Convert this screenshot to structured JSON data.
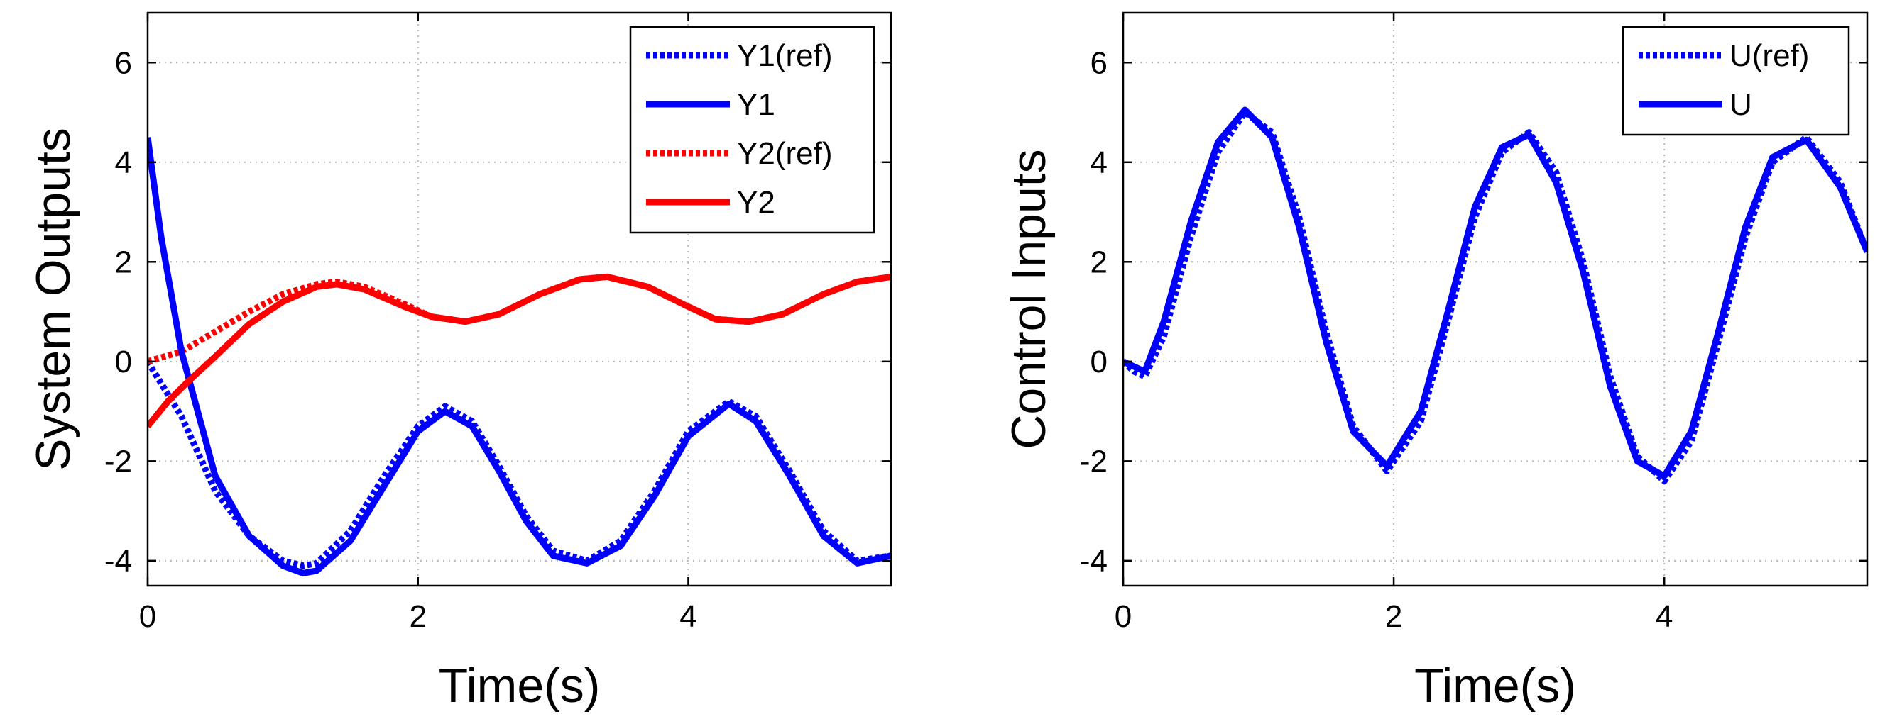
{
  "chart_data": [
    {
      "type": "line",
      "title": "",
      "xlabel": "Time(s)",
      "ylabel": "System Outputs",
      "xlim": [
        0,
        5.5
      ],
      "ylim": [
        -4.5,
        7
      ],
      "xticks": [
        0,
        2,
        4
      ],
      "yticks": [
        -4,
        -2,
        0,
        2,
        4,
        6
      ],
      "xtick_labels": [
        "0",
        "2",
        "4"
      ],
      "ytick_labels": [
        "-4",
        "-2",
        "0",
        "2",
        "4",
        "6"
      ],
      "grid": true,
      "legend_position": "top-right",
      "series": [
        {
          "name": "Y1(ref)",
          "color": "#0000ff",
          "style": "dotted",
          "x": [
            0,
            0.25,
            0.5,
            0.75,
            1.0,
            1.15,
            1.25,
            1.5,
            1.75,
            2.0,
            2.2,
            2.4,
            2.6,
            2.8,
            3.0,
            3.25,
            3.5,
            3.75,
            4.0,
            4.3,
            4.5,
            4.75,
            5.0,
            5.25,
            5.5
          ],
          "y": [
            0,
            -1.1,
            -2.6,
            -3.5,
            -4.0,
            -4.1,
            -4.05,
            -3.4,
            -2.3,
            -1.3,
            -0.9,
            -1.2,
            -2.1,
            -3.1,
            -3.8,
            -4.0,
            -3.6,
            -2.6,
            -1.4,
            -0.8,
            -1.1,
            -2.2,
            -3.4,
            -4.0,
            -3.9
          ]
        },
        {
          "name": "Y1",
          "color": "#0000ff",
          "style": "solid",
          "x": [
            0,
            0.1,
            0.25,
            0.5,
            0.75,
            1.0,
            1.15,
            1.25,
            1.5,
            1.75,
            2.0,
            2.2,
            2.4,
            2.6,
            2.8,
            3.0,
            3.25,
            3.5,
            3.75,
            4.0,
            4.3,
            4.5,
            4.75,
            5.0,
            5.25,
            5.5
          ],
          "y": [
            4.5,
            2.5,
            0.2,
            -2.3,
            -3.5,
            -4.1,
            -4.25,
            -4.2,
            -3.6,
            -2.5,
            -1.4,
            -1.0,
            -1.3,
            -2.2,
            -3.2,
            -3.9,
            -4.05,
            -3.7,
            -2.7,
            -1.5,
            -0.85,
            -1.2,
            -2.3,
            -3.5,
            -4.05,
            -3.9
          ]
        },
        {
          "name": "Y2(ref)",
          "color": "#ff0000",
          "style": "dotted",
          "x": [
            0,
            0.25,
            0.5,
            0.75,
            1.0,
            1.25,
            1.4,
            1.6,
            1.9,
            2.1,
            2.35,
            2.6,
            2.9,
            3.2,
            3.4,
            3.7,
            4.0,
            4.2,
            4.45,
            4.7,
            5.0,
            5.25,
            5.5
          ],
          "y": [
            0,
            0.2,
            0.6,
            1.0,
            1.35,
            1.55,
            1.6,
            1.5,
            1.15,
            0.9,
            0.8,
            0.95,
            1.35,
            1.65,
            1.7,
            1.5,
            1.1,
            0.85,
            0.8,
            0.95,
            1.35,
            1.6,
            1.7
          ]
        },
        {
          "name": "Y2",
          "color": "#ff0000",
          "style": "solid",
          "x": [
            0,
            0.15,
            0.3,
            0.5,
            0.75,
            1.0,
            1.25,
            1.4,
            1.6,
            1.9,
            2.1,
            2.35,
            2.6,
            2.9,
            3.2,
            3.4,
            3.7,
            4.0,
            4.2,
            4.45,
            4.7,
            5.0,
            5.25,
            5.5
          ],
          "y": [
            -1.3,
            -0.8,
            -0.4,
            0.1,
            0.75,
            1.2,
            1.5,
            1.55,
            1.45,
            1.1,
            0.9,
            0.8,
            0.95,
            1.35,
            1.65,
            1.7,
            1.5,
            1.1,
            0.85,
            0.8,
            0.95,
            1.35,
            1.6,
            1.7
          ]
        }
      ]
    },
    {
      "type": "line",
      "title": "",
      "xlabel": "Time(s)",
      "ylabel": "Control Inputs",
      "xlim": [
        0,
        5.5
      ],
      "ylim": [
        -4.5,
        7
      ],
      "xticks": [
        0,
        2,
        4
      ],
      "yticks": [
        -4,
        -2,
        0,
        2,
        4,
        6
      ],
      "xtick_labels": [
        "0",
        "2",
        "4"
      ],
      "ytick_labels": [
        "-4",
        "-2",
        "0",
        "2",
        "4",
        "6"
      ],
      "grid": true,
      "legend_position": "top-right",
      "series": [
        {
          "name": "U(ref)",
          "color": "#0000ff",
          "style": "dotted",
          "x": [
            0,
            0.08,
            0.16,
            0.3,
            0.5,
            0.7,
            0.9,
            1.1,
            1.3,
            1.5,
            1.7,
            1.95,
            2.2,
            2.4,
            2.6,
            2.8,
            3.0,
            3.2,
            3.4,
            3.6,
            3.8,
            4.0,
            4.2,
            4.4,
            4.6,
            4.8,
            5.05,
            5.3,
            5.5
          ],
          "y": [
            0,
            -0.2,
            -0.3,
            0.5,
            2.5,
            4.2,
            5.0,
            4.6,
            2.9,
            0.6,
            -1.3,
            -2.2,
            -1.2,
            0.8,
            2.9,
            4.2,
            4.6,
            3.8,
            2.0,
            -0.3,
            -1.9,
            -2.4,
            -1.6,
            0.4,
            2.5,
            4.0,
            4.5,
            3.6,
            2.2
          ]
        },
        {
          "name": "U",
          "color": "#0000ff",
          "style": "solid",
          "x": [
            0,
            0.08,
            0.16,
            0.3,
            0.5,
            0.7,
            0.9,
            1.1,
            1.3,
            1.5,
            1.7,
            1.95,
            2.2,
            2.4,
            2.6,
            2.8,
            3.0,
            3.2,
            3.4,
            3.6,
            3.8,
            4.0,
            4.2,
            4.4,
            4.6,
            4.8,
            5.05,
            5.3,
            5.5
          ],
          "y": [
            0,
            -0.1,
            -0.2,
            0.8,
            2.8,
            4.4,
            5.05,
            4.5,
            2.7,
            0.4,
            -1.4,
            -2.1,
            -1.0,
            1.0,
            3.1,
            4.3,
            4.55,
            3.6,
            1.8,
            -0.5,
            -2.0,
            -2.3,
            -1.4,
            0.6,
            2.7,
            4.1,
            4.45,
            3.5,
            2.2
          ]
        }
      ]
    }
  ]
}
